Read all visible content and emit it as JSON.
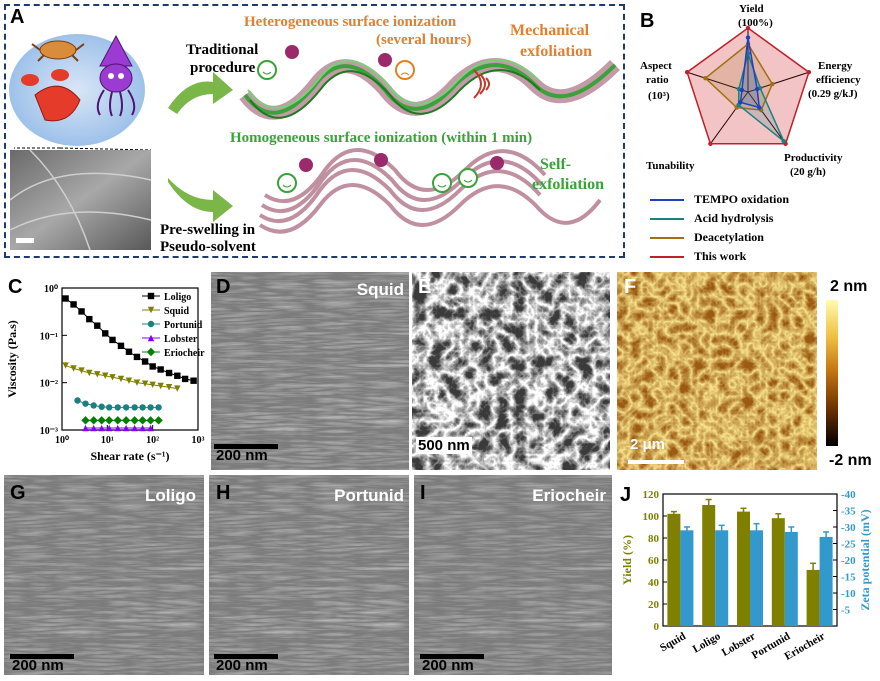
{
  "panelA": {
    "label": "A",
    "heterogeneous": "Heterogeneous surface ionization",
    "several_hours": "(several hours)",
    "mechanical": "Mechanical",
    "exfoliation": "exfoliation",
    "traditional1": "Traditional",
    "traditional2": "procedure",
    "homogeneous": "Homogeneous surface ionization (within 1 min)",
    "self1": "Self-",
    "self2": "exfoliation",
    "preswelling1": "Pre-swelling in",
    "preswelling2": "Pseudo-solvent"
  },
  "panelB": {
    "label": "B",
    "axes": [
      {
        "name": "Yield",
        "sub": "(100%)"
      },
      {
        "name": "Energy",
        "sub": "efficiency",
        "sub2": "(0.29 g/kJ)"
      },
      {
        "name": "Productivity",
        "sub": "(20 g/h)"
      },
      {
        "name": "Tunability"
      },
      {
        "name": "Aspect",
        "sub": "ratio",
        "sub2": "(10³)"
      }
    ],
    "legend": [
      "TEMPO oxidation",
      "Acid hydrolysis",
      "Deacetylation",
      "This work"
    ]
  },
  "panelLabels": {
    "C": "C",
    "D": "D",
    "E": "E",
    "F": "F",
    "G": "G",
    "H": "H",
    "I": "I",
    "J": "J"
  },
  "tags": {
    "D": "Squid",
    "G": "Loligo",
    "H": "Portunid",
    "I": "Eriocheir"
  },
  "scalebars": {
    "D": "200 nm",
    "E": "500 nm",
    "F": "2 μm",
    "G": "200 nm",
    "H": "200 nm",
    "I": "200 nm"
  },
  "colorbar": {
    "max": "2 nm",
    "min": "-2 nm"
  },
  "chart_data": [
    {
      "type": "line",
      "panel": "C",
      "xlabel": "Shear rate (s⁻¹)",
      "ylabel": "Viscosity (Pa.s)",
      "xscale": "log",
      "yscale": "log",
      "xlim": [
        1,
        1000
      ],
      "ylim": [
        0.001,
        1
      ],
      "xticks": [
        "10⁰",
        "10¹",
        "10²",
        "10³"
      ],
      "yticks": [
        "10⁰",
        "10⁻¹",
        "10⁻²",
        "10⁻³"
      ],
      "legend_position": "top-right",
      "series": [
        {
          "name": "Loligo",
          "marker": "square",
          "color": "#000000",
          "x": [
            1.2,
            1.8,
            2.7,
            4,
            6,
            9,
            13,
            20,
            30,
            45,
            68,
            100,
            150,
            230,
            350,
            520,
            800
          ],
          "y": [
            0.6,
            0.45,
            0.32,
            0.22,
            0.16,
            0.11,
            0.08,
            0.06,
            0.045,
            0.035,
            0.028,
            0.022,
            0.019,
            0.016,
            0.014,
            0.012,
            0.011
          ]
        },
        {
          "name": "Squid",
          "marker": "triangle-down",
          "color": "#7f7f00",
          "x": [
            1.2,
            1.8,
            2.7,
            4,
            6,
            9,
            13,
            20,
            30,
            45,
            68,
            100,
            150,
            230,
            350
          ],
          "y": [
            0.023,
            0.02,
            0.018,
            0.016,
            0.015,
            0.014,
            0.013,
            0.012,
            0.011,
            0.01,
            0.0095,
            0.009,
            0.0085,
            0.008,
            0.0075
          ]
        },
        {
          "name": "Portunid",
          "marker": "circle",
          "color": "#1a8080",
          "x": [
            2.2,
            3.3,
            5,
            7.5,
            11,
            17,
            26,
            40,
            60,
            90,
            135
          ],
          "y": [
            0.0042,
            0.0036,
            0.0033,
            0.0031,
            0.003,
            0.003,
            0.003,
            0.003,
            0.003,
            0.003,
            0.003
          ]
        },
        {
          "name": "Lobster",
          "marker": "triangle-up",
          "color": "#8000ff",
          "x": [
            3.3,
            5,
            7.5,
            11,
            17,
            26,
            40,
            60,
            90
          ],
          "y": [
            0.0011,
            0.0011,
            0.0011,
            0.0011,
            0.0011,
            0.0011,
            0.0011,
            0.0011,
            0.0011
          ]
        },
        {
          "name": "Eriocheir",
          "marker": "diamond",
          "color": "#008000",
          "x": [
            3.3,
            5,
            7.5,
            11,
            17,
            26,
            40,
            60,
            90,
            135
          ],
          "y": [
            0.0016,
            0.0016,
            0.0016,
            0.0016,
            0.0016,
            0.0016,
            0.0016,
            0.0016,
            0.0016,
            0.0016
          ]
        }
      ]
    },
    {
      "type": "bar",
      "panel": "J",
      "categories": [
        "Squid",
        "Loligo",
        "Lobster",
        "Portunid",
        "Eriocheir"
      ],
      "ylabel": "Yield (%)",
      "y2label": "Zeta potential (mV)",
      "ylim": [
        0,
        120
      ],
      "y2lim": [
        0,
        -40
      ],
      "yticks": [
        0,
        20,
        40,
        60,
        80,
        100,
        120
      ],
      "y2ticks": [
        -5,
        -10,
        -15,
        -20,
        -25,
        -30,
        -35,
        -40
      ],
      "series": [
        {
          "name": "Yield (%)",
          "axis": "left",
          "color": "#808000",
          "values": [
            102,
            110,
            104,
            98,
            51
          ],
          "errors": [
            2,
            5,
            3,
            4,
            6
          ]
        },
        {
          "name": "Zeta potential (mV)",
          "axis": "right",
          "color": "#3399cc",
          "values": [
            -29,
            -29,
            -29,
            -28.5,
            -27
          ],
          "errors": [
            1,
            1.5,
            2,
            1.5,
            1.5
          ]
        }
      ]
    }
  ]
}
